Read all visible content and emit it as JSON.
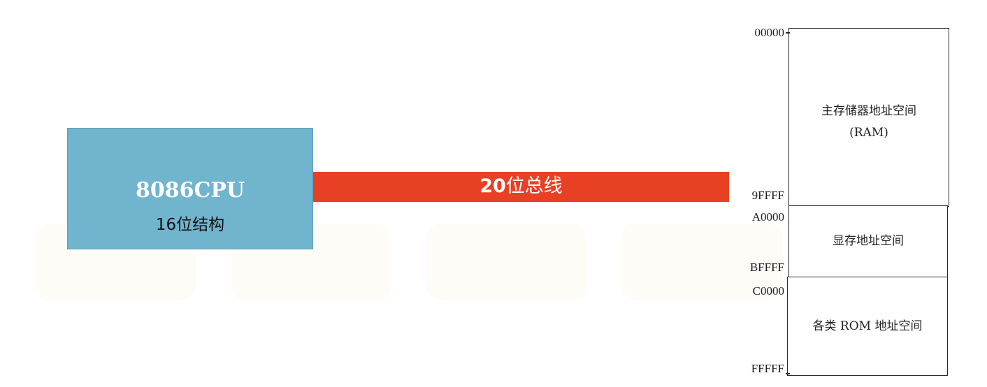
{
  "cpu": {
    "title": "8086CPU",
    "subtitle": "16位结构"
  },
  "bus": {
    "number": "20",
    "suffix": "位总线"
  },
  "memory": {
    "blocks": [
      {
        "label_line1": "主存储器地址空间",
        "label_line2": "(RAM)"
      },
      {
        "label_line1": "显存地址空间"
      },
      {
        "label_line1": "各类 ROM 地址空间"
      }
    ],
    "addresses": [
      "00000",
      "9FFFF",
      "A0000",
      "BFFFF",
      "C0000",
      "FFFFF"
    ]
  },
  "colors": {
    "cpu_fill": "#71b4cd",
    "bus_fill": "#e84024",
    "block_border": "#2a2a2a"
  }
}
